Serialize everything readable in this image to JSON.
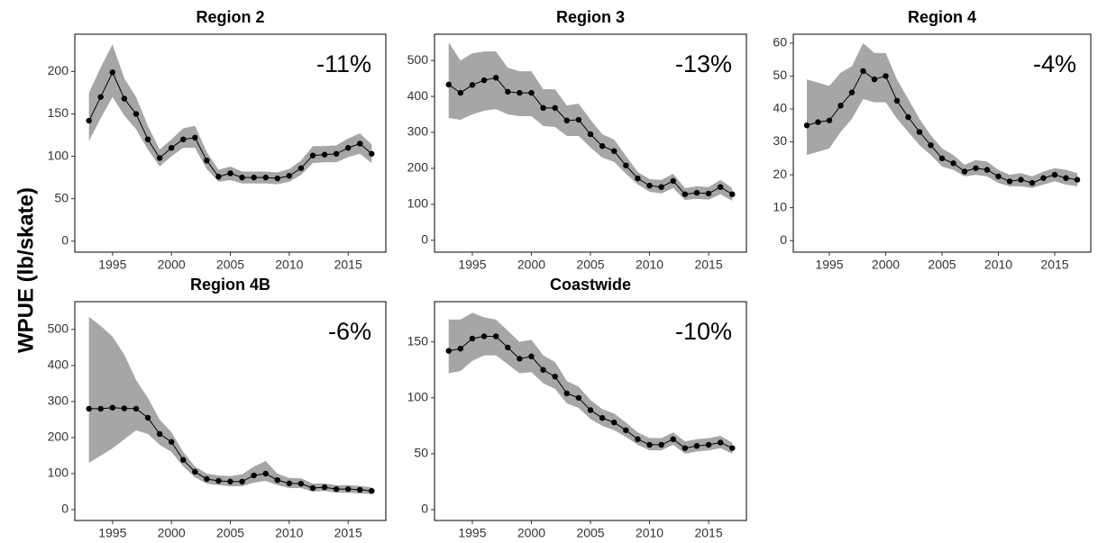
{
  "ylabel": "WPUE (lb/skate)",
  "chart_data": [
    {
      "type": "line",
      "title": "Region 2",
      "annotation": "-11%",
      "color": "#000000",
      "band_color": "#a6a6a6",
      "x": [
        1993,
        1994,
        1995,
        1996,
        1997,
        1998,
        1999,
        2000,
        2001,
        2002,
        2003,
        2004,
        2005,
        2006,
        2007,
        2008,
        2009,
        2010,
        2011,
        2012,
        2013,
        2014,
        2015,
        2016,
        2017
      ],
      "values": [
        142,
        170,
        199,
        168,
        150,
        120,
        98,
        110,
        120,
        122,
        95,
        76,
        80,
        75,
        75,
        75,
        74,
        77,
        86,
        101,
        102,
        103,
        110,
        115,
        103
      ],
      "lower": [
        118,
        145,
        170,
        148,
        132,
        108,
        88,
        100,
        110,
        110,
        85,
        70,
        72,
        68,
        68,
        68,
        67,
        70,
        78,
        92,
        93,
        93,
        99,
        103,
        92
      ],
      "upper": [
        175,
        205,
        232,
        192,
        170,
        136,
        108,
        120,
        133,
        136,
        105,
        84,
        88,
        82,
        82,
        82,
        81,
        85,
        95,
        112,
        112,
        113,
        121,
        127,
        114
      ],
      "xlim": [
        1991.8,
        2018.2
      ],
      "ylim": [
        -13,
        244
      ],
      "xticks": [
        1995,
        2000,
        2005,
        2010,
        2015
      ],
      "yticks": [
        0,
        50,
        100,
        150,
        200
      ]
    },
    {
      "type": "line",
      "title": "Region 3",
      "annotation": "-13%",
      "color": "#000000",
      "band_color": "#a6a6a6",
      "x": [
        1993,
        1994,
        1995,
        1996,
        1997,
        1998,
        1999,
        2000,
        2001,
        2002,
        2003,
        2004,
        2005,
        2006,
        2007,
        2008,
        2009,
        2010,
        2011,
        2012,
        2013,
        2014,
        2015,
        2016,
        2017
      ],
      "values": [
        433,
        410,
        432,
        445,
        452,
        413,
        410,
        410,
        368,
        368,
        333,
        335,
        295,
        262,
        248,
        208,
        172,
        152,
        148,
        165,
        128,
        132,
        130,
        148,
        128
      ],
      "lower": [
        340,
        335,
        350,
        360,
        365,
        350,
        345,
        345,
        318,
        315,
        290,
        290,
        258,
        230,
        218,
        185,
        155,
        135,
        130,
        145,
        112,
        115,
        113,
        128,
        110
      ],
      "upper": [
        550,
        500,
        520,
        525,
        525,
        480,
        470,
        470,
        420,
        420,
        375,
        380,
        335,
        295,
        280,
        235,
        190,
        170,
        168,
        185,
        145,
        150,
        148,
        168,
        145
      ],
      "xlim": [
        1991.8,
        2018.2
      ],
      "ylim": [
        -33,
        573
      ],
      "xticks": [
        1995,
        2000,
        2005,
        2010,
        2015
      ],
      "yticks": [
        0,
        100,
        200,
        300,
        400,
        500
      ]
    },
    {
      "type": "line",
      "title": "Region 4",
      "annotation": "-4%",
      "color": "#000000",
      "band_color": "#a6a6a6",
      "x": [
        1993,
        1994,
        1995,
        1996,
        1997,
        1998,
        1999,
        2000,
        2001,
        2002,
        2003,
        2004,
        2005,
        2006,
        2007,
        2008,
        2009,
        2010,
        2011,
        2012,
        2013,
        2014,
        2015,
        2016,
        2017
      ],
      "values": [
        35,
        36,
        36.5,
        41,
        45,
        51.5,
        49,
        50,
        42.5,
        37.5,
        33,
        29,
        25,
        23.5,
        21,
        22,
        21.5,
        19.5,
        18,
        18.5,
        17.5,
        19,
        20,
        19,
        18.5
      ],
      "lower": [
        26,
        27,
        28,
        33,
        37,
        43,
        42,
        42,
        37,
        33,
        29,
        26,
        22.5,
        21.5,
        19.5,
        20,
        19.5,
        17.5,
        16.5,
        16.5,
        16,
        17,
        18,
        17,
        16.5
      ],
      "upper": [
        49,
        48,
        47,
        51,
        53,
        60,
        57,
        57,
        49,
        43,
        37,
        32,
        28,
        26,
        23,
        24.5,
        24,
        21.5,
        20,
        20.5,
        19.5,
        21,
        22,
        21.5,
        20.5
      ],
      "xlim": [
        1991.8,
        2018.2
      ],
      "ylim": [
        -3.5,
        62.7
      ],
      "xticks": [
        1995,
        2000,
        2005,
        2010,
        2015
      ],
      "yticks": [
        0,
        10,
        20,
        30,
        40,
        50,
        60
      ]
    },
    {
      "type": "line",
      "title": "Region 4B",
      "annotation": "-6%",
      "color": "#000000",
      "band_color": "#a6a6a6",
      "x": [
        1993,
        1994,
        1995,
        1996,
        1997,
        1998,
        1999,
        2000,
        2001,
        2002,
        2003,
        2004,
        2005,
        2006,
        2007,
        2008,
        2009,
        2010,
        2011,
        2012,
        2013,
        2014,
        2015,
        2016,
        2017
      ],
      "values": [
        280,
        280,
        283,
        281,
        280,
        255,
        210,
        188,
        138,
        105,
        85,
        80,
        78,
        78,
        95,
        100,
        82,
        73,
        72,
        60,
        62,
        57,
        57,
        55,
        52
      ],
      "lower": [
        130,
        150,
        170,
        195,
        220,
        210,
        180,
        160,
        120,
        90,
        72,
        68,
        65,
        65,
        75,
        80,
        68,
        60,
        60,
        50,
        52,
        47,
        47,
        45,
        43
      ],
      "upper": [
        535,
        510,
        480,
        430,
        360,
        310,
        250,
        215,
        160,
        120,
        100,
        95,
        93,
        98,
        120,
        135,
        100,
        88,
        87,
        72,
        73,
        68,
        68,
        66,
        62
      ],
      "xlim": [
        1991.8,
        2018.2
      ],
      "ylim": [
        -30,
        577
      ],
      "xticks": [
        1995,
        2000,
        2005,
        2010,
        2015
      ],
      "yticks": [
        0,
        100,
        200,
        300,
        400,
        500
      ]
    },
    {
      "type": "line",
      "title": "Coastwide",
      "annotation": "-10%",
      "color": "#000000",
      "band_color": "#a6a6a6",
      "x": [
        1993,
        1994,
        1995,
        1996,
        1997,
        1998,
        1999,
        2000,
        2001,
        2002,
        2003,
        2004,
        2005,
        2006,
        2007,
        2008,
        2009,
        2010,
        2011,
        2012,
        2013,
        2014,
        2015,
        2016,
        2017
      ],
      "values": [
        142,
        144,
        153,
        155,
        155,
        145,
        135,
        137,
        125,
        119,
        104,
        100,
        89,
        82,
        78,
        71,
        63,
        58,
        58,
        63,
        55,
        57,
        58,
        60,
        55
      ],
      "lower": [
        122,
        124,
        133,
        138,
        138,
        130,
        122,
        123,
        113,
        108,
        95,
        91,
        81,
        75,
        71,
        65,
        58,
        53,
        53,
        58,
        50,
        52,
        53,
        55,
        50
      ],
      "upper": [
        170,
        170,
        176,
        172,
        170,
        160,
        150,
        152,
        138,
        132,
        115,
        110,
        98,
        90,
        86,
        78,
        69,
        64,
        64,
        69,
        61,
        63,
        64,
        66,
        60
      ],
      "xlim": [
        1991.8,
        2018.2
      ],
      "ylim": [
        -9.7,
        186
      ],
      "xticks": [
        1995,
        2000,
        2005,
        2010,
        2015
      ],
      "yticks": [
        0,
        50,
        100,
        150
      ]
    }
  ]
}
